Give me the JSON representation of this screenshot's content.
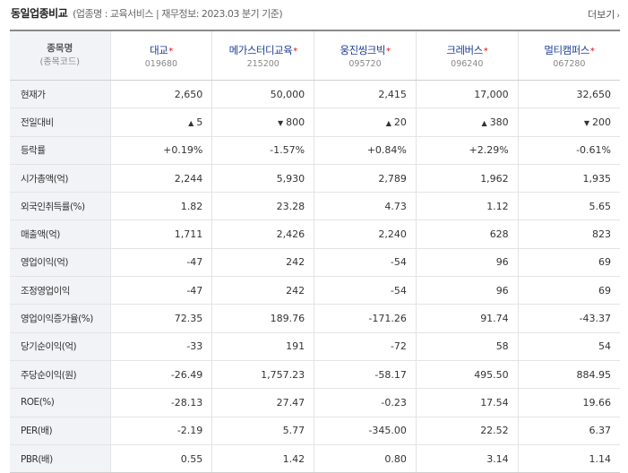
{
  "header": {
    "title": "동일업종비교",
    "subtitle": "(업종명 : 교육서비스 | 재무정보: 2023.03 분기 기준)",
    "more_label": "더보기",
    "more_arrow": "›"
  },
  "corner": {
    "line1": "종목명",
    "line2": "(종목코드)"
  },
  "companies": [
    {
      "name": "대교",
      "mark": "*",
      "code": "019680"
    },
    {
      "name": "메가스터디교육",
      "mark": "*",
      "code": "215200"
    },
    {
      "name": "웅진씽크빅",
      "mark": "*",
      "code": "095720"
    },
    {
      "name": "크레버스",
      "mark": "*",
      "code": "096240"
    },
    {
      "name": "멀티캠퍼스",
      "mark": "*",
      "code": "067280"
    }
  ],
  "rows": [
    {
      "label": "현재가",
      "values": [
        "2,650",
        "50,000",
        "2,415",
        "17,000",
        "32,650"
      ]
    },
    {
      "label": "전일대비",
      "values": [
        "5",
        "800",
        "20",
        "380",
        "200"
      ],
      "dirs": [
        "up",
        "down",
        "up",
        "up",
        "down"
      ]
    },
    {
      "label": "등락률",
      "values": [
        "+0.19%",
        "-1.57%",
        "+0.84%",
        "+2.29%",
        "-0.61%"
      ],
      "dirs": [
        "up",
        "down",
        "up",
        "up",
        "down"
      ]
    },
    {
      "label": "시가총액(억)",
      "values": [
        "2,244",
        "5,930",
        "2,789",
        "1,962",
        "1,935"
      ]
    },
    {
      "label": "외국인취득률(%)",
      "values": [
        "1.82",
        "23.28",
        "4.73",
        "1.12",
        "5.65"
      ]
    },
    {
      "label": "매출액(억)",
      "values": [
        "1,711",
        "2,426",
        "2,240",
        "628",
        "823"
      ]
    },
    {
      "label": "영업이익(억)",
      "values": [
        "-47",
        "242",
        "-54",
        "96",
        "69"
      ]
    },
    {
      "label": "조정영업이익",
      "values": [
        "-47",
        "242",
        "-54",
        "96",
        "69"
      ]
    },
    {
      "label": "영업이익증가율(%)",
      "values": [
        "72.35",
        "189.76",
        "-171.26",
        "91.74",
        "-43.37"
      ]
    },
    {
      "label": "당기순이익(억)",
      "values": [
        "-33",
        "191",
        "-72",
        "58",
        "54"
      ]
    },
    {
      "label": "주당순이익(원)",
      "values": [
        "-26.49",
        "1,757.23",
        "-58.17",
        "495.50",
        "884.95"
      ]
    },
    {
      "label": "ROE(%)",
      "values": [
        "-28.13",
        "27.47",
        "-0.23",
        "17.54",
        "19.66"
      ]
    },
    {
      "label": "PER(배)",
      "values": [
        "-2.19",
        "5.77",
        "-345.00",
        "22.52",
        "6.37"
      ]
    },
    {
      "label": "PBR(배)",
      "values": [
        "0.55",
        "1.42",
        "0.80",
        "3.14",
        "1.14"
      ]
    }
  ],
  "glyphs": {
    "up": "▲",
    "down": "▼"
  },
  "colors": {
    "up": "#d0021b",
    "down": "#1b5bd6",
    "company_name": "#1c3f94",
    "label_bg": "#f1f3f6"
  }
}
